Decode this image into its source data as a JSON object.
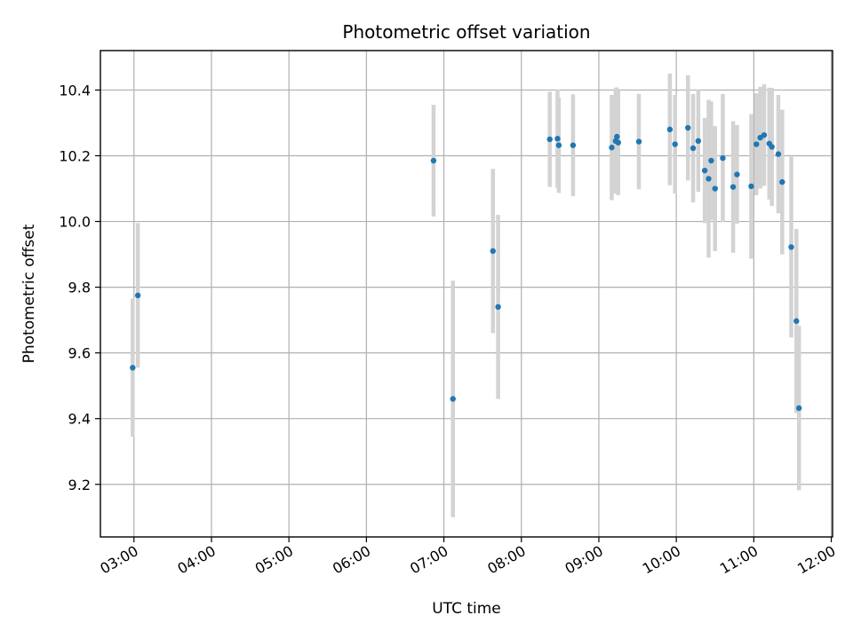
{
  "chart_data": {
    "type": "scatter",
    "title": "Photometric offset variation",
    "xlabel": "UTC time",
    "ylabel": "Photometric offset",
    "x_unit": "UTC hh:mm",
    "xlim": [
      "02:34",
      "12:01"
    ],
    "ylim": [
      9.04,
      10.52
    ],
    "x_ticks": [
      "03:00",
      "04:00",
      "05:00",
      "06:00",
      "07:00",
      "08:00",
      "09:00",
      "10:00",
      "11:00",
      "12:00"
    ],
    "y_ticks": [
      9.2,
      9.4,
      9.6,
      9.8,
      10.0,
      10.2,
      10.4
    ],
    "y_tick_labels": [
      "9.2",
      "9.4",
      "9.6",
      "9.8",
      "10.0",
      "10.2",
      "10.4"
    ],
    "grid": true,
    "colors": {
      "point": "#1f77b4",
      "errorbar": "#d3d3d3",
      "grid": "#b0b0b0"
    },
    "points": [
      {
        "t": "02:59",
        "y": 9.555,
        "err": 0.21
      },
      {
        "t": "03:03",
        "y": 9.775,
        "err": 0.22
      },
      {
        "t": "06:52",
        "y": 10.185,
        "err": 0.17
      },
      {
        "t": "07:07",
        "y": 9.46,
        "err": 0.36
      },
      {
        "t": "07:38",
        "y": 9.91,
        "err": 0.25
      },
      {
        "t": "07:42",
        "y": 9.74,
        "err": 0.28
      },
      {
        "t": "08:22",
        "y": 10.25,
        "err": 0.145
      },
      {
        "t": "08:28",
        "y": 10.252,
        "err": 0.15
      },
      {
        "t": "08:29",
        "y": 10.232,
        "err": 0.145
      },
      {
        "t": "08:40",
        "y": 10.232,
        "err": 0.155
      },
      {
        "t": "09:10",
        "y": 10.225,
        "err": 0.16
      },
      {
        "t": "09:13",
        "y": 10.245,
        "err": 0.16
      },
      {
        "t": "09:14",
        "y": 10.258,
        "err": 0.15
      },
      {
        "t": "09:15",
        "y": 10.24,
        "err": 0.16
      },
      {
        "t": "09:31",
        "y": 10.243,
        "err": 0.145
      },
      {
        "t": "09:55",
        "y": 10.28,
        "err": 0.17
      },
      {
        "t": "09:59",
        "y": 10.235,
        "err": 0.15
      },
      {
        "t": "10:09",
        "y": 10.285,
        "err": 0.16
      },
      {
        "t": "10:13",
        "y": 10.223,
        "err": 0.165
      },
      {
        "t": "10:17",
        "y": 10.245,
        "err": 0.155
      },
      {
        "t": "10:22",
        "y": 10.155,
        "err": 0.16
      },
      {
        "t": "10:25",
        "y": 10.13,
        "err": 0.24
      },
      {
        "t": "10:27",
        "y": 10.185,
        "err": 0.18
      },
      {
        "t": "10:30",
        "y": 10.1,
        "err": 0.19
      },
      {
        "t": "10:36",
        "y": 10.193,
        "err": 0.195
      },
      {
        "t": "10:44",
        "y": 10.105,
        "err": 0.2
      },
      {
        "t": "10:47",
        "y": 10.143,
        "err": 0.15
      },
      {
        "t": "10:58",
        "y": 10.107,
        "err": 0.22
      },
      {
        "t": "11:02",
        "y": 10.235,
        "err": 0.155
      },
      {
        "t": "11:05",
        "y": 10.255,
        "err": 0.155
      },
      {
        "t": "11:08",
        "y": 10.263,
        "err": 0.155
      },
      {
        "t": "11:12",
        "y": 10.237,
        "err": 0.17
      },
      {
        "t": "11:14",
        "y": 10.227,
        "err": 0.18
      },
      {
        "t": "11:19",
        "y": 10.205,
        "err": 0.18
      },
      {
        "t": "11:22",
        "y": 10.12,
        "err": 0.22
      },
      {
        "t": "11:29",
        "y": 9.922,
        "err": 0.275
      },
      {
        "t": "11:33",
        "y": 9.697,
        "err": 0.28
      },
      {
        "t": "11:35",
        "y": 9.432,
        "err": 0.25
      }
    ]
  }
}
